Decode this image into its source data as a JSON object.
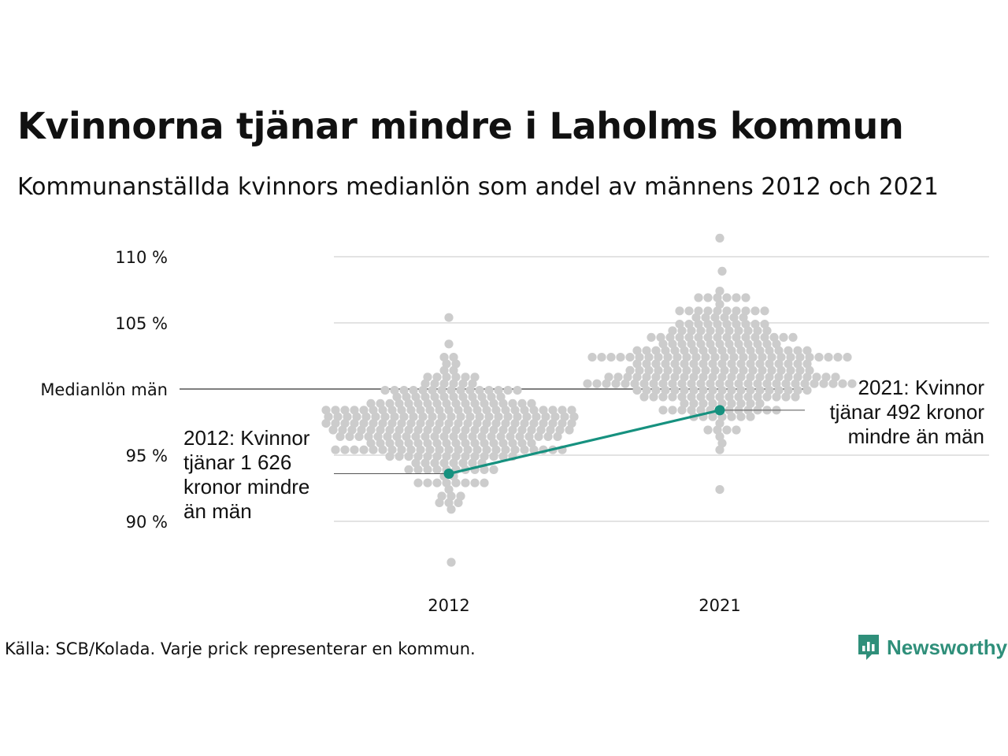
{
  "title": "Kvinnorna tjänar mindre i Laholms kommun",
  "subtitle": "Kommunanställda kvinnors medianlön som andel av männens 2012 och 2021",
  "source": "Källa: SCB/Kolada. Varje prick representerar en kommun.",
  "logo": {
    "text": "Newsworthy",
    "icon": "newsworthy-chart-icon"
  },
  "colors": {
    "dots": "#cccccc",
    "highlight": "#16917f",
    "grid": "#e3e3e3",
    "reference_line": "#333333",
    "brand": "#2f8f7a"
  },
  "chart_data": {
    "type": "scatter",
    "subtype": "beeswarm",
    "title": "Kvinnorna tjänar mindre i Laholms kommun",
    "subtitle": "Kommunanställda kvinnors medianlön som andel av männens 2012 och 2021",
    "categories": [
      "2012",
      "2021"
    ],
    "ylim": [
      86,
      111.5
    ],
    "y_ticks": [
      {
        "value": 110,
        "label": "110 %"
      },
      {
        "value": 105,
        "label": "105 %"
      },
      {
        "value": 100,
        "label": "Medianlön män"
      },
      {
        "value": 95,
        "label": "95 %"
      },
      {
        "value": 90,
        "label": "90 %"
      }
    ],
    "reference_line": {
      "value": 100,
      "label": "Medianlön män"
    },
    "grid": true,
    "distributions": [
      {
        "category": "2012",
        "count": 290,
        "mean": 97.2,
        "sd": 2.2,
        "min": 86.8,
        "max": 105.2
      },
      {
        "category": "2021",
        "count": 290,
        "mean": 101.8,
        "sd": 2.2,
        "min": 92.5,
        "max": 111.2
      }
    ],
    "series": [
      {
        "name": "Laholms kommun",
        "values": [
          {
            "x": "2012",
            "y": 93.6
          },
          {
            "x": "2021",
            "y": 98.4
          }
        ]
      }
    ],
    "annotations": [
      {
        "category": "2012",
        "lines": [
          "2012: Kvinnor",
          "tjänar 1 626",
          "kronor mindre",
          "än män"
        ]
      },
      {
        "category": "2021",
        "lines": [
          "2021: Kvinnor",
          "tjänar 492 kronor",
          "mindre än män"
        ]
      }
    ]
  }
}
